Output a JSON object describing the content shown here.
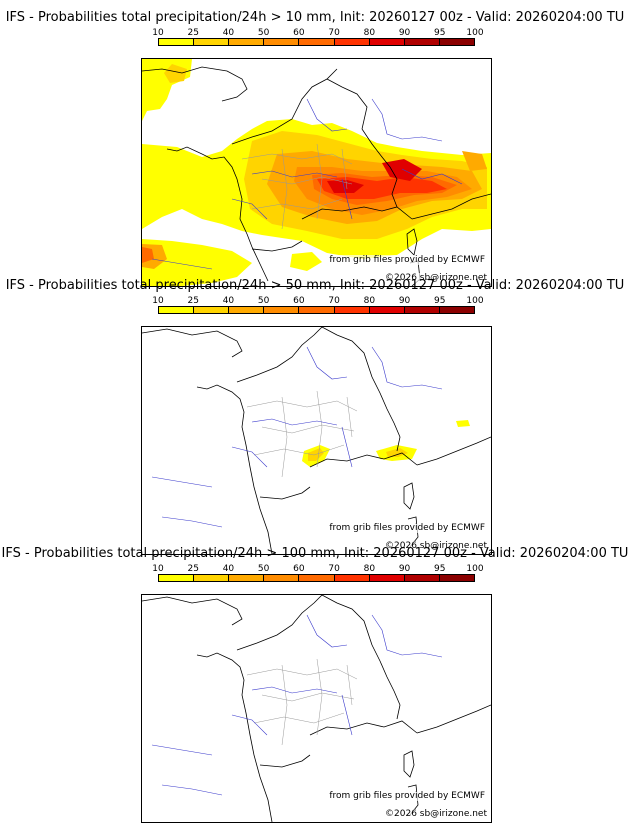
{
  "panels": [
    {
      "title": "IFS - Probabilities total precipitation/24h > 10 mm, Init: 20260127 00z - Valid: 20260204:00 TU",
      "threshold_mm": 10,
      "legend": {
        "ticks": [
          "10",
          "25",
          "40",
          "50",
          "60",
          "70",
          "80",
          "90",
          "95",
          "100"
        ],
        "colors": [
          "#ffff00",
          "#ffd400",
          "#ffaa00",
          "#ff8c00",
          "#ff6a00",
          "#ff3300",
          "#e00000",
          "#b00000",
          "#8b0000"
        ]
      },
      "credit_grib": "from grib files provided by ECMWF",
      "credit_copyright": "©2026 sb@irizone.net"
    },
    {
      "title": "IFS - Probabilities total precipitation/24h > 50 mm, Init: 20260127 00z - Valid: 20260204:00 TU",
      "threshold_mm": 50,
      "legend": {
        "ticks": [
          "10",
          "25",
          "40",
          "50",
          "60",
          "70",
          "80",
          "90",
          "95",
          "100"
        ],
        "colors": [
          "#ffff00",
          "#ffd400",
          "#ffaa00",
          "#ff8c00",
          "#ff6a00",
          "#ff3300",
          "#e00000",
          "#b00000",
          "#8b0000"
        ]
      },
      "credit_grib": "from grib files provided by ECMWF",
      "credit_copyright": "©2026 sb@irizone.net"
    },
    {
      "title": "IFS - Probabilities total precipitation/24h > 100 mm, Init: 20260127 00z - Valid: 20260204:00 TU",
      "threshold_mm": 100,
      "legend": {
        "ticks": [
          "10",
          "25",
          "40",
          "50",
          "60",
          "70",
          "80",
          "90",
          "95",
          "100"
        ],
        "colors": [
          "#ffff00",
          "#ffd400",
          "#ffaa00",
          "#ff8c00",
          "#ff6a00",
          "#ff3300",
          "#e00000",
          "#b00000",
          "#8b0000"
        ]
      },
      "credit_grib": "from grib files provided by ECMWF",
      "credit_copyright": "©2026 sb@irizone.net"
    }
  ]
}
